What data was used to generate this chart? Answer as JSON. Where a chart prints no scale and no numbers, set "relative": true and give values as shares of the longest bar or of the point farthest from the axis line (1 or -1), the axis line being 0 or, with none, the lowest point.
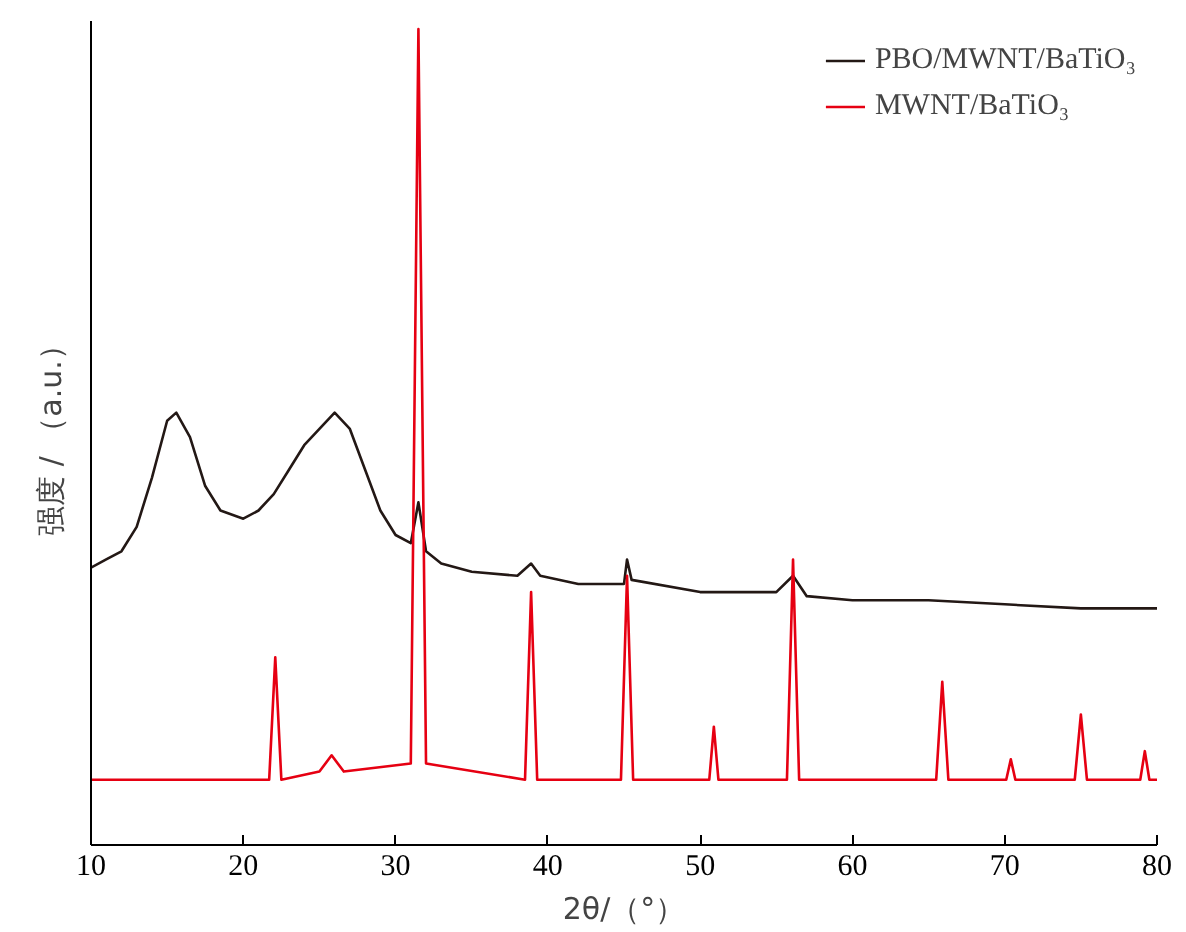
{
  "chart_data": {
    "type": "line",
    "xlabel": "2θ/（°）",
    "ylabel": "强度 / （a.u.）",
    "relative": true,
    "xlim": [
      10,
      80
    ],
    "xticks": [
      10,
      20,
      30,
      40,
      50,
      60,
      70,
      80
    ],
    "grid": false,
    "legend": "top right",
    "marker": "none",
    "line_style": "solid",
    "series": [
      {
        "name": "PBO/MWNT/BaTiO₃",
        "color": "#231815",
        "x": [
          10,
          11,
          12,
          13,
          14,
          15,
          15.6,
          16.5,
          17.5,
          18.5,
          20,
          21,
          22,
          23,
          24,
          25,
          26,
          27,
          28,
          29,
          30,
          31,
          31.5,
          32,
          33,
          35,
          38,
          38.9,
          39.5,
          42,
          45,
          45.2,
          45.5,
          50,
          55,
          56.1,
          57,
          60,
          65,
          70,
          75,
          80
        ],
        "values": [
          0.34,
          0.35,
          0.36,
          0.39,
          0.45,
          0.52,
          0.53,
          0.5,
          0.44,
          0.41,
          0.4,
          0.41,
          0.43,
          0.46,
          0.49,
          0.51,
          0.53,
          0.51,
          0.46,
          0.41,
          0.38,
          0.37,
          0.42,
          0.36,
          0.345,
          0.335,
          0.33,
          0.345,
          0.33,
          0.32,
          0.32,
          0.35,
          0.325,
          0.31,
          0.31,
          0.33,
          0.305,
          0.3,
          0.3,
          0.295,
          0.29,
          0.29
        ]
      },
      {
        "name": "MWNT/BaTiO₃",
        "color": "#e60012",
        "x": [
          10,
          15,
          21.7,
          22.1,
          22.5,
          25,
          25.8,
          26.6,
          31,
          31.5,
          32,
          38.5,
          38.9,
          39.3,
          44.8,
          45.2,
          45.6,
          50.6,
          50.9,
          51.2,
          55.7,
          56.1,
          56.5,
          65.5,
          65.9,
          66.3,
          70.1,
          70.4,
          70.7,
          74.6,
          75,
          75.4,
          78.9,
          79.2,
          79.5,
          80
        ],
        "values": [
          0.08,
          0.08,
          0.08,
          0.23,
          0.08,
          0.09,
          0.11,
          0.09,
          0.1,
          1.0,
          0.1,
          0.08,
          0.31,
          0.08,
          0.08,
          0.33,
          0.08,
          0.08,
          0.145,
          0.08,
          0.08,
          0.35,
          0.08,
          0.08,
          0.2,
          0.08,
          0.08,
          0.105,
          0.08,
          0.08,
          0.16,
          0.08,
          0.08,
          0.115,
          0.08,
          0.08
        ]
      }
    ]
  }
}
